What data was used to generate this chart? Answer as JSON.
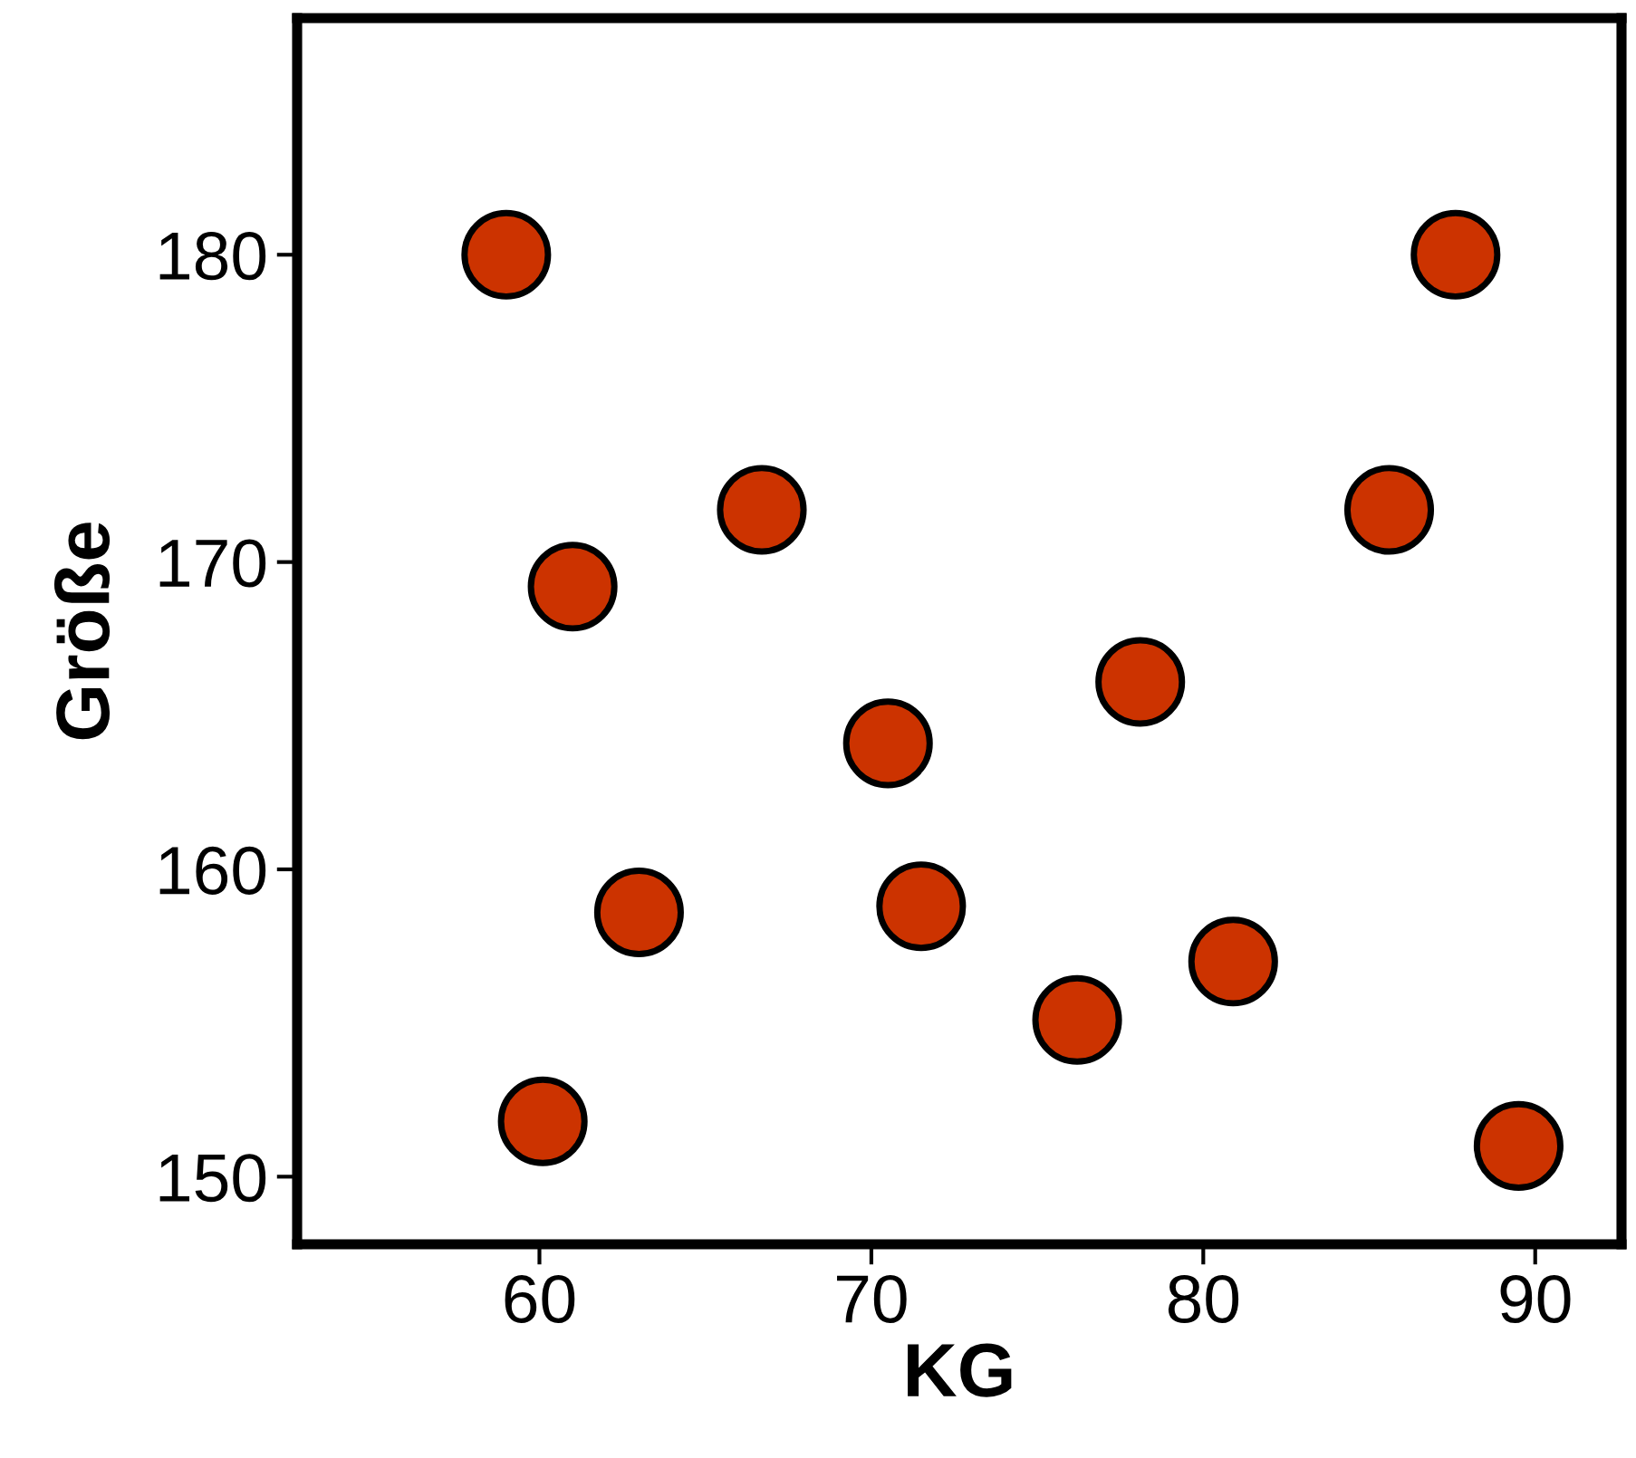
{
  "chart_data": {
    "type": "scatter",
    "xlabel": "KG",
    "ylabel": "Größe",
    "x": [
      59.0,
      87.6,
      66.7,
      85.6,
      61.0,
      78.1,
      70.5,
      63.0,
      71.5,
      80.9,
      76.2,
      60.1,
      89.5
    ],
    "values": [
      180,
      180,
      171.7,
      171.7,
      169.2,
      166.1,
      164.1,
      158.6,
      158.8,
      157.0,
      155.1,
      151.8,
      151.0
    ],
    "color": "#cc3300",
    "marker": "circle",
    "grid": false,
    "legend": false,
    "xlim": [
      52.7,
      92.6
    ],
    "ylim": [
      147.8,
      187.7
    ],
    "xticks": [
      60,
      70,
      80,
      90
    ],
    "yticks": [
      150,
      160,
      170,
      180
    ]
  }
}
